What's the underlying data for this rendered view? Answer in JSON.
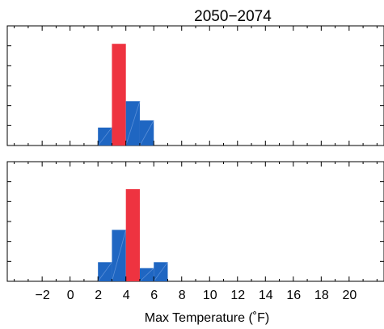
{
  "chart_data": {
    "type": "bar",
    "title": "2050−2074",
    "xlabel": "Max Temperature (˚F)",
    "ylabel": "",
    "xlim": [
      -4.5,
      22.5
    ],
    "xticks": [
      "−2",
      "0",
      "2",
      "4",
      "6",
      "8",
      "10",
      "12",
      "14",
      "16",
      "18",
      "20"
    ],
    "xtick_values": [
      -2,
      0,
      2,
      4,
      6,
      8,
      10,
      12,
      14,
      16,
      18,
      20
    ],
    "bin_width": 1,
    "grid": false,
    "colors": {
      "bars": "#1f66c2",
      "highlight": "#ee3340",
      "hatch": "#5a8fd8"
    },
    "panels": [
      {
        "position": "top",
        "ylim": [
          0,
          1
        ],
        "bars": [
          {
            "x": 2,
            "value": 0.15,
            "highlight": false
          },
          {
            "x": 3,
            "value": 0.85,
            "highlight": true
          },
          {
            "x": 4,
            "value": 0.37,
            "highlight": false
          },
          {
            "x": 5,
            "value": 0.21,
            "highlight": false
          }
        ]
      },
      {
        "position": "bottom",
        "ylim": [
          0,
          1
        ],
        "bars": [
          {
            "x": 2,
            "value": 0.16,
            "highlight": false
          },
          {
            "x": 3,
            "value": 0.43,
            "highlight": false
          },
          {
            "x": 4,
            "value": 0.77,
            "highlight": true
          },
          {
            "x": 5,
            "value": 0.11,
            "highlight": false
          },
          {
            "x": 6,
            "value": 0.16,
            "highlight": false
          }
        ]
      }
    ]
  }
}
